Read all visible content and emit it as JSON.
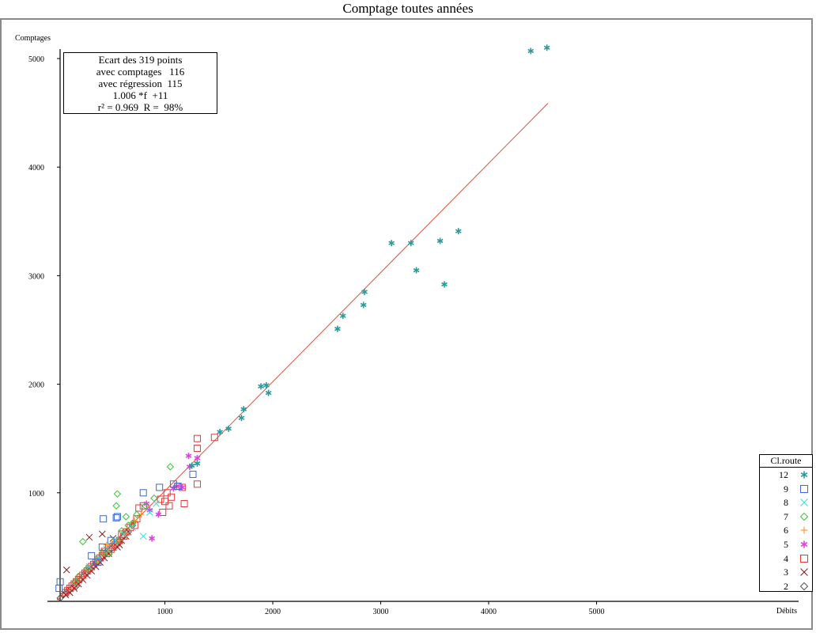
{
  "chart_data": {
    "type": "scatter",
    "title": "Comptage toutes années",
    "xlabel": "Débits",
    "ylabel": "Comptages",
    "xlim": [
      0,
      6500
    ],
    "ylim": [
      0,
      5100
    ],
    "x_ticks": [
      1000,
      2000,
      3000,
      4000,
      5000
    ],
    "y_ticks": [
      1000,
      2000,
      3000,
      4000,
      5000
    ],
    "x_tick_labels": [
      "1000",
      "2000",
      "3000",
      "4000",
      "5000"
    ],
    "y_tick_labels": [
      "1000",
      "2000",
      "3000",
      "4000",
      "5000"
    ],
    "grid": false,
    "legend_placement": "bottom-right",
    "regression": {
      "slope": 1.006,
      "intercept": 11,
      "x_end": 4550,
      "color": "#e0503c"
    },
    "stats_lines": [
      "Ecart des 319 points",
      "avec comptages   116",
      "avec régression  115",
      "1.006 *f  +11",
      "r² = 0.969  R =  98%"
    ],
    "legend_title": "Cl.route",
    "series": [
      {
        "name": "12",
        "marker": "asterisk",
        "color": "#2a9a9a",
        "x": [
          4390,
          4540,
          3720,
          3550,
          3280,
          3100,
          3330,
          3590,
          2850,
          2840,
          2650,
          2600,
          1940,
          1890,
          1960,
          1730,
          1710,
          1590,
          1510,
          1300,
          1250
        ],
        "y": [
          5070,
          5100,
          3410,
          3320,
          3300,
          3300,
          3050,
          2920,
          2850,
          2730,
          2630,
          2510,
          1990,
          1980,
          1920,
          1770,
          1690,
          1590,
          1560,
          1270,
          1250
        ]
      },
      {
        "name": "9",
        "marker": "square",
        "color": "#3a6bd0",
        "x": [
          20,
          30,
          430,
          560,
          550,
          800,
          950,
          1080,
          1120,
          1260,
          320,
          420,
          500,
          380
        ],
        "y": [
          120,
          180,
          760,
          780,
          770,
          1000,
          1050,
          1080,
          1060,
          1170,
          420,
          500,
          560,
          360
        ]
      },
      {
        "name": "8",
        "marker": "x",
        "color": "#40d8d8",
        "x": [
          800,
          860,
          920,
          700,
          620,
          540,
          460,
          380,
          300
        ],
        "y": [
          600,
          820,
          900,
          680,
          620,
          560,
          480,
          400,
          320
        ]
      },
      {
        "name": "7",
        "marker": "diamond",
        "color": "#40c040",
        "x": [
          1050,
          560,
          550,
          240,
          200,
          480,
          560,
          640,
          700,
          740,
          820,
          900,
          170,
          280,
          380,
          420,
          660,
          600
        ],
        "y": [
          1240,
          990,
          880,
          550,
          230,
          440,
          560,
          780,
          720,
          800,
          880,
          950,
          180,
          300,
          380,
          450,
          700,
          650
        ]
      },
      {
        "name": "6",
        "marker": "plus",
        "color": "#ff8c1a",
        "x": [
          420,
          520,
          580,
          640,
          720,
          780,
          460,
          360
        ],
        "y": [
          440,
          540,
          560,
          620,
          740,
          800,
          520,
          380
        ]
      },
      {
        "name": "5",
        "marker": "asterisk",
        "color": "#e040e0",
        "x": [
          1220,
          1230,
          1300,
          880,
          940,
          830,
          860,
          1110,
          1160,
          1080
        ],
        "y": [
          1340,
          1240,
          1320,
          580,
          800,
          900,
          840,
          1060,
          1050,
          1040
        ]
      },
      {
        "name": "4",
        "marker": "square",
        "color": "#e03a3a",
        "x": [
          1300,
          1300,
          1460,
          1300,
          1160,
          1180,
          1120,
          1060,
          1040,
          1020,
          980,
          1000,
          960,
          800,
          760,
          740,
          720,
          680,
          640,
          620,
          600,
          580,
          560,
          540,
          520,
          500,
          480,
          460,
          440,
          420,
          400,
          380,
          360,
          340,
          320,
          300,
          280,
          260,
          240,
          220,
          200,
          180,
          160,
          140,
          120,
          100,
          80
        ],
        "y": [
          1500,
          1410,
          1510,
          1080,
          1050,
          900,
          1060,
          960,
          880,
          1000,
          820,
          920,
          940,
          880,
          860,
          760,
          700,
          680,
          640,
          600,
          620,
          560,
          540,
          520,
          500,
          480,
          460,
          440,
          460,
          420,
          400,
          380,
          360,
          340,
          320,
          300,
          280,
          260,
          240,
          220,
          200,
          180,
          160,
          140,
          120,
          100,
          80
        ]
      },
      {
        "name": "3",
        "marker": "x",
        "color": "#7a2020",
        "x": [
          90,
          300,
          420,
          520,
          580,
          640,
          480,
          440,
          400,
          360,
          320,
          280,
          240,
          200,
          160,
          120,
          80,
          560,
          600,
          660
        ],
        "y": [
          290,
          590,
          620,
          580,
          520,
          600,
          440,
          400,
          360,
          320,
          280,
          240,
          200,
          160,
          120,
          80,
          60,
          500,
          560,
          640
        ]
      },
      {
        "name": "2",
        "marker": "diamond",
        "color": "#555555",
        "x": [
          30,
          60,
          100,
          140,
          180,
          220,
          260,
          300,
          340,
          380,
          420,
          460,
          500,
          540,
          580,
          620,
          660,
          700
        ],
        "y": [
          30,
          60,
          100,
          120,
          140,
          200,
          260,
          300,
          330,
          360,
          420,
          460,
          480,
          520,
          560,
          600,
          640,
          700
        ]
      }
    ]
  }
}
